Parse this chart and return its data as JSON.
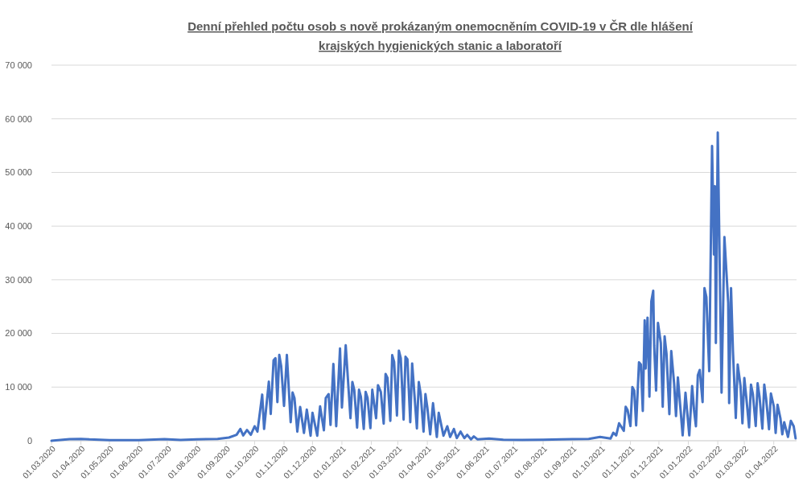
{
  "chart_data": {
    "type": "line",
    "title": "Denní přehled počtu osob s nově prokázaným onemocněním COVID-19 v ČR dle hlášení krajských hygienických stanic a laboratoří",
    "x": [
      "2020-03-01",
      "2020-03-20",
      "2020-04-01",
      "2020-04-10",
      "2020-05-01",
      "2020-06-01",
      "2020-06-28",
      "2020-07-15",
      "2020-08-01",
      "2020-08-23",
      "2020-09-04",
      "2020-09-12",
      "2020-09-16",
      "2020-09-19",
      "2020-09-23",
      "2020-09-27",
      "2020-10-01",
      "2020-10-04",
      "2020-10-09",
      "2020-10-11",
      "2020-10-16",
      "2020-10-18",
      "2020-10-21",
      "2020-10-23",
      "2020-10-25",
      "2020-10-27",
      "2020-10-29",
      "2020-11-01",
      "2020-11-04",
      "2020-11-08",
      "2020-11-10",
      "2020-11-12",
      "2020-11-15",
      "2020-11-18",
      "2020-11-22",
      "2020-11-25",
      "2020-11-29",
      "2020-12-01",
      "2020-12-06",
      "2020-12-09",
      "2020-12-13",
      "2020-12-15",
      "2020-12-18",
      "2020-12-20",
      "2020-12-23",
      "2020-12-26",
      "2020-12-30",
      "2021-01-01",
      "2021-01-05",
      "2021-01-10",
      "2021-01-12",
      "2021-01-14",
      "2021-01-17",
      "2021-01-19",
      "2021-01-21",
      "2021-01-24",
      "2021-01-26",
      "2021-01-28",
      "2021-01-31",
      "2021-02-02",
      "2021-02-06",
      "2021-02-08",
      "2021-02-11",
      "2021-02-14",
      "2021-02-16",
      "2021-02-18",
      "2021-02-21",
      "2021-02-23",
      "2021-02-25",
      "2021-02-28",
      "2021-03-02",
      "2021-03-04",
      "2021-03-07",
      "2021-03-09",
      "2021-03-11",
      "2021-03-14",
      "2021-03-16",
      "2021-03-21",
      "2021-03-23",
      "2021-03-25",
      "2021-03-28",
      "2021-03-30",
      "2021-04-01",
      "2021-04-04",
      "2021-04-07",
      "2021-04-11",
      "2021-04-13",
      "2021-04-18",
      "2021-04-22",
      "2021-04-25",
      "2021-04-29",
      "2021-05-02",
      "2021-05-06",
      "2021-05-10",
      "2021-05-13",
      "2021-05-17",
      "2021-05-20",
      "2021-05-24",
      "2021-06-05",
      "2021-06-20",
      "2021-07-10",
      "2021-08-01",
      "2021-08-20",
      "2021-09-01",
      "2021-09-18",
      "2021-09-30",
      "2021-10-11",
      "2021-10-14",
      "2021-10-17",
      "2021-10-20",
      "2021-10-25",
      "2021-10-27",
      "2021-10-29",
      "2021-11-01",
      "2021-11-03",
      "2021-11-05",
      "2021-11-07",
      "2021-11-10",
      "2021-11-12",
      "2021-11-14",
      "2021-11-16",
      "2021-11-17",
      "2021-11-19",
      "2021-11-21",
      "2021-11-23",
      "2021-11-25",
      "2021-11-26",
      "2021-11-28",
      "2021-11-30",
      "2021-12-03",
      "2021-12-05",
      "2021-12-07",
      "2021-12-09",
      "2021-12-12",
      "2021-12-14",
      "2021-12-17",
      "2021-12-19",
      "2021-12-21",
      "2021-12-26",
      "2021-12-29",
      "2022-01-02",
      "2022-01-05",
      "2022-01-07",
      "2022-01-09",
      "2022-01-11",
      "2022-01-13",
      "2022-01-16",
      "2022-01-18",
      "2022-01-20",
      "2022-01-23",
      "2022-01-26",
      "2022-01-28",
      "2022-01-29",
      "2022-01-30",
      "2022-02-01",
      "2022-02-05",
      "2022-02-08",
      "2022-02-12",
      "2022-02-13",
      "2022-02-15",
      "2022-02-17",
      "2022-02-20",
      "2022-02-22",
      "2022-02-25",
      "2022-02-27",
      "2022-03-01",
      "2022-03-03",
      "2022-03-06",
      "2022-03-08",
      "2022-03-10",
      "2022-03-13",
      "2022-03-15",
      "2022-03-17",
      "2022-03-20",
      "2022-03-22",
      "2022-03-24",
      "2022-03-27",
      "2022-03-29",
      "2022-04-01",
      "2022-04-03",
      "2022-04-05",
      "2022-04-08",
      "2022-04-10",
      "2022-04-12",
      "2022-04-16",
      "2022-04-19",
      "2022-04-22",
      "2022-04-24"
    ],
    "series": [
      {
        "color": "#4472c4",
        "values": [
          0,
          300,
          350,
          250,
          100,
          100,
          300,
          150,
          250,
          350,
          600,
          1100,
          2200,
          1000,
          2000,
          1100,
          2700,
          1700,
          8600,
          2200,
          11000,
          5000,
          15000,
          15400,
          7200,
          16000,
          13900,
          6500,
          16000,
          3450,
          9000,
          7950,
          1700,
          6300,
          1450,
          5800,
          950,
          5200,
          950,
          6400,
          1950,
          7950,
          8700,
          2950,
          14300,
          2700,
          17200,
          6200,
          17800,
          4200,
          10950,
          9450,
          2450,
          9500,
          8200,
          2200,
          9100,
          8000,
          2350,
          9500,
          4200,
          10350,
          9100,
          3200,
          12450,
          11700,
          3700,
          15950,
          14700,
          4700,
          16800,
          15400,
          3950,
          15650,
          15200,
          3450,
          14400,
          2300,
          10950,
          8700,
          1700,
          8700,
          6200,
          1200,
          7000,
          700,
          5200,
          950,
          2700,
          700,
          2200,
          500,
          1700,
          500,
          1100,
          250,
          800,
          250,
          400,
          200,
          150,
          200,
          250,
          300,
          350,
          700,
          400,
          1500,
          1000,
          3250,
          1850,
          6350,
          5700,
          2750,
          10000,
          9350,
          2850,
          14600,
          14200,
          5550,
          22450,
          13450,
          22950,
          8200,
          25950,
          27950,
          17700,
          9350,
          21950,
          18200,
          6350,
          19450,
          16200,
          4950,
          16700,
          10700,
          4600,
          11800,
          1000,
          8950,
          1000,
          10200,
          5700,
          2700,
          12200,
          13200,
          7200,
          28450,
          26800,
          12950,
          54950,
          34700,
          47450,
          18200,
          57450,
          8950,
          37950,
          25700,
          7000,
          28450,
          16700,
          4250,
          14200,
          10200,
          3250,
          11700,
          8200,
          2500,
          10450,
          8700,
          2750,
          10700,
          8200,
          2250,
          10450,
          7750,
          2150,
          8800,
          6450,
          1450,
          6700,
          4200,
          1200,
          3450,
          700,
          3700,
          2700,
          450
        ]
      }
    ],
    "xlim": [
      "2020-03-01",
      "2022-04-25"
    ],
    "xticks": [
      {
        "value": "2020-03-01",
        "label": "01.03.2020"
      },
      {
        "value": "2020-04-01",
        "label": "01.04.2020"
      },
      {
        "value": "2020-05-01",
        "label": "01.05.2020"
      },
      {
        "value": "2020-06-01",
        "label": "01.06.2020"
      },
      {
        "value": "2020-07-01",
        "label": "01.07.2020"
      },
      {
        "value": "2020-08-01",
        "label": "01.08.2020"
      },
      {
        "value": "2020-09-01",
        "label": "01.09.2020"
      },
      {
        "value": "2020-10-01",
        "label": "01.10.2020"
      },
      {
        "value": "2020-11-01",
        "label": "01.11.2020"
      },
      {
        "value": "2020-12-01",
        "label": "01.12.2020"
      },
      {
        "value": "2021-01-01",
        "label": "01.01.2021"
      },
      {
        "value": "2021-02-01",
        "label": "01.02.2021"
      },
      {
        "value": "2021-03-01",
        "label": "01.03.2021"
      },
      {
        "value": "2021-04-01",
        "label": "01.04.2021"
      },
      {
        "value": "2021-05-01",
        "label": "01.05.2021"
      },
      {
        "value": "2021-06-01",
        "label": "01.06.2021"
      },
      {
        "value": "2021-07-01",
        "label": "01.07.2021"
      },
      {
        "value": "2021-08-01",
        "label": "01.08.2021"
      },
      {
        "value": "2021-09-01",
        "label": "01.09.2021"
      },
      {
        "value": "2021-10-01",
        "label": "01.10.2021"
      },
      {
        "value": "2021-11-01",
        "label": "01.11.2021"
      },
      {
        "value": "2021-12-01",
        "label": "01.12.2021"
      },
      {
        "value": "2022-01-01",
        "label": "01.01.2022"
      },
      {
        "value": "2022-02-01",
        "label": "01.02.2022"
      },
      {
        "value": "2022-03-01",
        "label": "01.03.2022"
      },
      {
        "value": "2022-04-01",
        "label": "01.04.2022"
      }
    ],
    "ylim": [
      0,
      70000
    ],
    "yticks": [
      0,
      {
        "value": 10000,
        "label": "10 000"
      },
      {
        "value": 20000,
        "label": "20 000"
      },
      {
        "value": 30000,
        "label": "30 000"
      },
      {
        "value": 40000,
        "label": "40 000"
      },
      {
        "value": 50000,
        "label": "50 000"
      },
      {
        "value": 60000,
        "label": "60 000"
      },
      {
        "value": 70000,
        "label": "70 000"
      }
    ],
    "grid": "y",
    "marker": "none",
    "line_style": "solid"
  }
}
